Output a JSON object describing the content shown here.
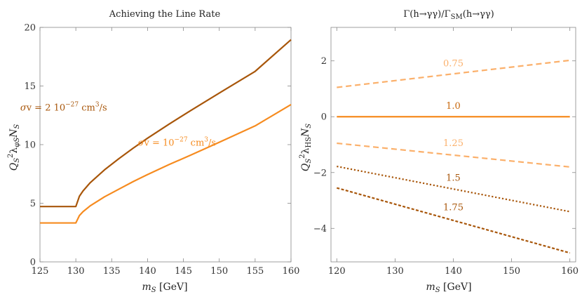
{
  "chart_data": [
    {
      "type": "line",
      "title": "Achieving the Line Rate",
      "xlabel": "m",
      "xlabel_sub": "S",
      "xlabel_unit": " [GeV]",
      "ylabel": "Q_S^2 λ_φS N_S",
      "xlim": [
        125,
        160
      ],
      "ylim": [
        0,
        20
      ],
      "xticks": [
        125,
        130,
        135,
        140,
        145,
        150,
        155,
        160
      ],
      "yticks": [
        0,
        5,
        10,
        15,
        20
      ],
      "series": [
        {
          "name": "σv = 2 10^-27 cm^3/s",
          "color": "#A8560A",
          "dash": "solid",
          "x": [
            125,
            129.9,
            130,
            130.5,
            131,
            132,
            134,
            136,
            138,
            140,
            143,
            146,
            150,
            155,
            160
          ],
          "y": [
            4.72,
            4.72,
            4.72,
            5.6,
            6.05,
            6.75,
            7.85,
            8.8,
            9.7,
            10.55,
            11.75,
            12.9,
            14.4,
            16.25,
            18.95
          ]
        },
        {
          "name": "σv = 10^-27 cm^3/s",
          "color": "#F68B1F",
          "dash": "solid",
          "x": [
            125,
            129.9,
            130,
            130.5,
            131,
            132,
            134,
            136,
            138,
            140,
            143,
            146,
            150,
            155,
            160
          ],
          "y": [
            3.32,
            3.32,
            3.32,
            3.95,
            4.28,
            4.78,
            5.55,
            6.2,
            6.85,
            7.45,
            8.3,
            9.1,
            10.2,
            11.6,
            13.42
          ]
        }
      ],
      "annotations": [
        {
          "text": "σv = 2 10^-27 cm^3/s",
          "sigma": "σ",
          "v": "v = 2 10",
          "exp": "−27",
          "cm": " cm",
          "cm_exp": "3",
          "per": "/s",
          "color": "#A8560A",
          "x": 128.3,
          "y": 12.9
        },
        {
          "text": "σv = 10^-27 cm^3/s",
          "sigma": "σ",
          "v": "v = 10",
          "exp": "−27",
          "cm": " cm",
          "cm_exp": "3",
          "per": "/s",
          "color": "#F68B1F",
          "x": 144.1,
          "y": 9.9
        }
      ]
    },
    {
      "type": "line",
      "title": "Γ(h→γγ)/Γ_SM(h→γγ)",
      "title_main": "Γ(h→γγ)/Γ",
      "title_sub": "SM",
      "title_tail": "(h→γγ)",
      "xlabel": "m",
      "xlabel_sub": "S",
      "xlabel_unit": " [GeV]",
      "ylabel": "Q_S^2 λ_HS N_S",
      "xlim": [
        119,
        161
      ],
      "ylim": [
        -5.2,
        3.2
      ],
      "xticks": [
        120,
        130,
        140,
        150,
        160
      ],
      "yticks": [
        -4,
        -2,
        0,
        2
      ],
      "series": [
        {
          "name": "0.75",
          "color": "#FBB06B",
          "dash": "dashed",
          "x": [
            120,
            160
          ],
          "y": [
            1.05,
            2.02
          ]
        },
        {
          "name": "1.0",
          "color": "#F68B1F",
          "dash": "solid",
          "x": [
            120,
            160
          ],
          "y": [
            0,
            0
          ]
        },
        {
          "name": "1.25",
          "color": "#FBB06B",
          "dash": "dashed",
          "x": [
            120,
            160
          ],
          "y": [
            -0.95,
            -1.8
          ]
        },
        {
          "name": "1.5",
          "color": "#A8560A",
          "dash": "dotted",
          "x": [
            120,
            160
          ],
          "y": [
            -1.78,
            -3.4
          ]
        },
        {
          "name": "1.75",
          "color": "#A8560A",
          "dash": "dashdot",
          "x": [
            120,
            160
          ],
          "y": [
            -2.55,
            -4.88
          ]
        }
      ],
      "annotations": [
        {
          "text": "0.75",
          "color": "#FBB06B",
          "x": 140,
          "y": 1.8
        },
        {
          "text": "1.0",
          "color": "#C9690F",
          "x": 140,
          "y": 0.28
        },
        {
          "text": "1.25",
          "color": "#FBB06B",
          "x": 140,
          "y": -1.05
        },
        {
          "text": "1.5",
          "color": "#A8560A",
          "x": 140,
          "y": -2.3
        },
        {
          "text": "1.75",
          "color": "#A8560A",
          "x": 140,
          "y": -3.35
        }
      ]
    }
  ]
}
